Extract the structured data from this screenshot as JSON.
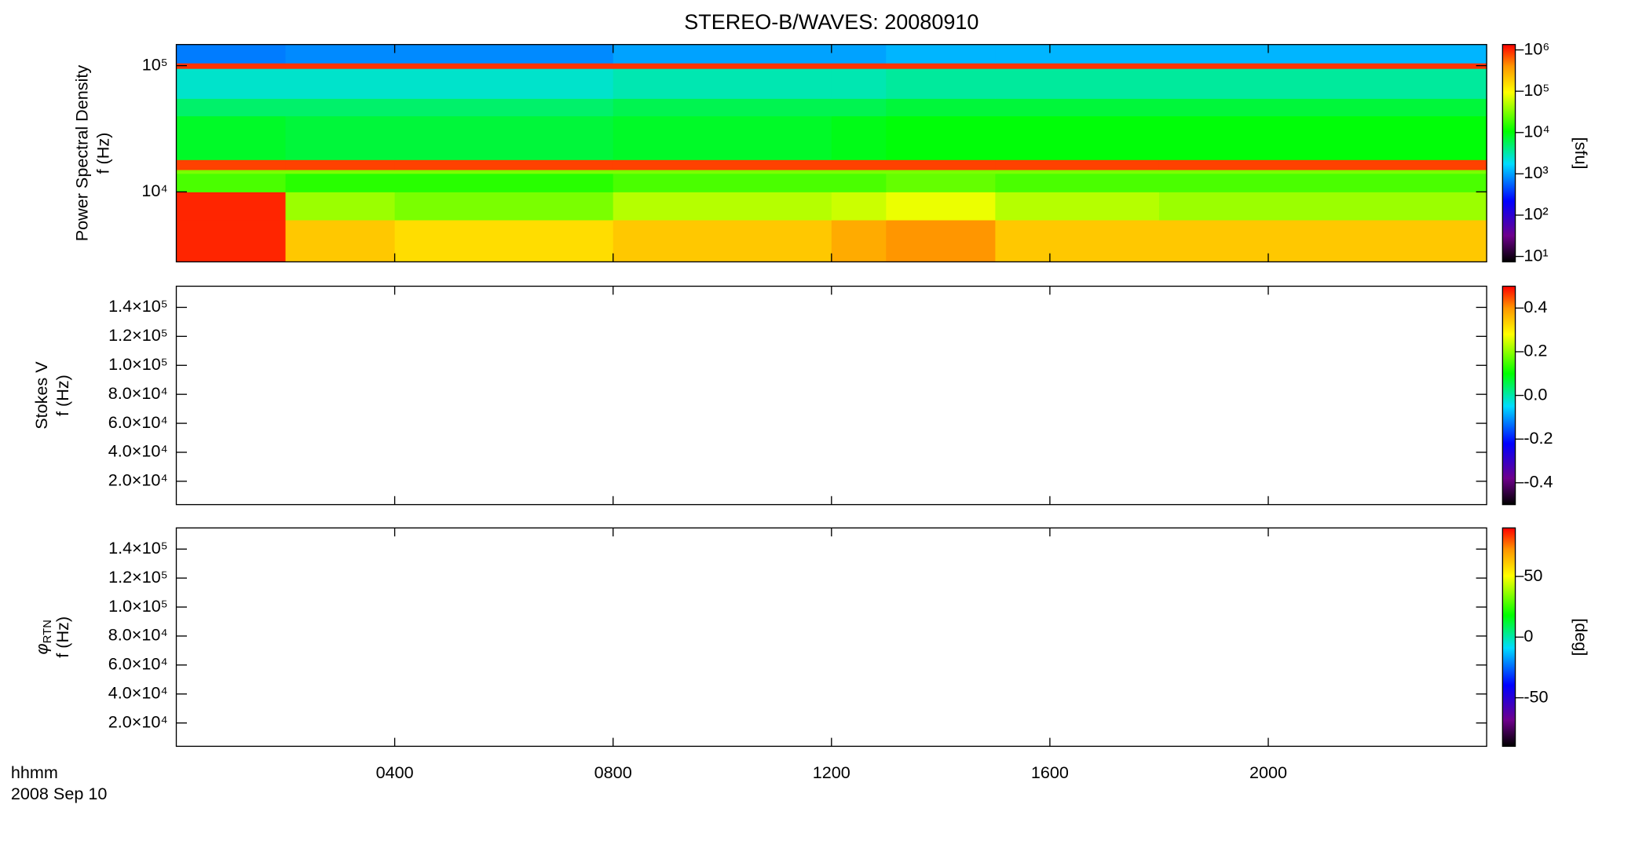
{
  "chart_data": [
    {
      "type": "heatmap",
      "title": "STEREO-B/WAVES: 20080910",
      "ylabel": [
        "Power Spectral Density",
        "f (Hz)"
      ],
      "ylog": true,
      "ylim": [
        2790,
        147000
      ],
      "yticks": [
        {
          "value": 10000,
          "label": "10⁴"
        },
        {
          "value": 100000,
          "label": "10⁵"
        }
      ],
      "x_edges": [
        0,
        2,
        4,
        8,
        12,
        13,
        15,
        18,
        24
      ],
      "y_edges": [
        2790,
        6000,
        10000,
        14000,
        15000,
        18000,
        40000,
        55000,
        95000,
        105000,
        147000
      ],
      "z": [
        [
          1000000,
          200000,
          150000,
          200000,
          300000,
          400000,
          200000,
          200000
        ],
        [
          1000000,
          40000,
          30000,
          50000,
          60000,
          80000,
          50000,
          40000
        ],
        [
          20000,
          15000,
          15000,
          20000,
          20000,
          25000,
          20000,
          20000
        ],
        [
          30000,
          30000,
          30000,
          30000,
          30000,
          30000,
          30000,
          30000
        ],
        [
          800000,
          800000,
          800000,
          800000,
          800000,
          800000,
          800000,
          800000
        ],
        [
          8000,
          7000,
          7000,
          8000,
          9000,
          10000,
          10000,
          10000
        ],
        [
          5000,
          5000,
          5000,
          6000,
          6000,
          7000,
          7000,
          7000
        ],
        [
          2500,
          2500,
          2500,
          3000,
          3000,
          3500,
          3500,
          3500
        ],
        [
          900000,
          900000,
          900000,
          900000,
          900000,
          900000,
          900000,
          900000
        ],
        [
          700,
          800,
          800,
          1000,
          1000,
          1200,
          1200,
          1200
        ]
      ],
      "zlog": true,
      "zlim": [
        7.4,
        1350000
      ],
      "zticks": [
        {
          "value": 10,
          "label": "10¹"
        },
        {
          "value": 100,
          "label": "10²"
        },
        {
          "value": 1000,
          "label": "10³"
        },
        {
          "value": 10000,
          "label": "10⁴"
        },
        {
          "value": 100000,
          "label": "10⁵"
        },
        {
          "value": 1000000,
          "label": "10⁶"
        }
      ],
      "zlabel": "[sfu]"
    },
    {
      "type": "heatmap",
      "ylabel": [
        "Stokes V",
        "f (Hz)"
      ],
      "ylim": [
        3900,
        154600
      ],
      "yticks": [
        {
          "value": 20000,
          "label": "2.0×10⁴"
        },
        {
          "value": 40000,
          "label": "4.0×10⁴"
        },
        {
          "value": 60000,
          "label": "6.0×10⁴"
        },
        {
          "value": 80000,
          "label": "8.0×10⁴"
        },
        {
          "value": 100000,
          "label": "1.0×10⁵"
        },
        {
          "value": 120000,
          "label": "1.2×10⁵"
        },
        {
          "value": 140000,
          "label": "1.4×10⁵"
        }
      ],
      "zlim": [
        -0.5,
        0.5
      ],
      "zticks": [
        -0.4,
        -0.2,
        {
          "value": 0,
          "label": "0.0"
        },
        0.2,
        0.4
      ]
    },
    {
      "type": "heatmap",
      "ylabel": [
        {
          "symbol": "φ",
          "subscript": "RTN"
        },
        "f (Hz)"
      ],
      "ylim": [
        3900,
        154600
      ],
      "yticks": [
        {
          "value": 20000,
          "label": "2.0×10⁴"
        },
        {
          "value": 40000,
          "label": "4.0×10⁴"
        },
        {
          "value": 60000,
          "label": "6.0×10⁴"
        },
        {
          "value": 80000,
          "label": "8.0×10⁴"
        },
        {
          "value": 100000,
          "label": "1.0×10⁵"
        },
        {
          "value": 120000,
          "label": "1.2×10⁵"
        },
        {
          "value": 140000,
          "label": "1.4×10⁵"
        }
      ],
      "zlim": [
        -90,
        90
      ],
      "zticks": [
        -50,
        0,
        50
      ],
      "zlabel": "[deg]",
      "xlim": [
        0,
        24
      ],
      "xticks": [
        {
          "value": 4,
          "label": "0400"
        },
        {
          "value": 8,
          "label": "0800"
        },
        {
          "value": 12,
          "label": "1200"
        },
        {
          "value": 16,
          "label": "1600"
        },
        {
          "value": 20,
          "label": "2000"
        }
      ],
      "xlabel": [
        "hhmm",
        "2008 Sep 10"
      ]
    }
  ]
}
